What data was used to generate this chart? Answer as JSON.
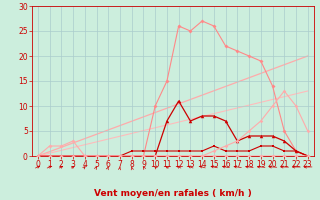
{
  "bg_color": "#cceedd",
  "grid_color": "#aacccc",
  "xlabel": "Vent moyen/en rafales ( km/h )",
  "xlim": [
    -0.5,
    23.5
  ],
  "ylim": [
    0,
    30
  ],
  "xticks": [
    0,
    1,
    2,
    3,
    4,
    5,
    6,
    7,
    8,
    9,
    10,
    11,
    12,
    13,
    14,
    15,
    16,
    17,
    18,
    19,
    20,
    21,
    22,
    23
  ],
  "yticks": [
    0,
    5,
    10,
    15,
    20,
    25,
    30
  ],
  "line_pink_big": {
    "x": [
      0,
      1,
      2,
      3,
      4,
      5,
      6,
      7,
      8,
      9,
      10,
      11,
      12,
      13,
      14,
      15,
      16,
      17,
      18,
      19,
      20,
      21,
      22,
      23
    ],
    "y": [
      0,
      0,
      0,
      0,
      0,
      0,
      0,
      0,
      0,
      0,
      10,
      15,
      26,
      25,
      27,
      26,
      22,
      21,
      20,
      19,
      14,
      5,
      1,
      0
    ],
    "color": "#ff8888",
    "lw": 0.8,
    "marker": "D",
    "ms": 2.0
  },
  "line_dark_tri": {
    "x": [
      0,
      1,
      2,
      3,
      4,
      5,
      6,
      7,
      8,
      9,
      10,
      11,
      12,
      13,
      14,
      15,
      16,
      17,
      18,
      19,
      20,
      21,
      22,
      23
    ],
    "y": [
      0,
      0,
      0,
      0,
      0,
      0,
      0,
      0,
      0,
      0,
      0,
      7,
      11,
      7,
      8,
      8,
      7,
      3,
      4,
      4,
      4,
      3,
      1,
      0
    ],
    "color": "#cc0000",
    "lw": 0.9,
    "marker": "^",
    "ms": 2.5
  },
  "line_dark_flat": {
    "x": [
      0,
      1,
      2,
      3,
      4,
      5,
      6,
      7,
      8,
      9,
      10,
      11,
      12,
      13,
      14,
      15,
      16,
      17,
      18,
      19,
      20,
      21,
      22,
      23
    ],
    "y": [
      0,
      0,
      0,
      0,
      0,
      0,
      0,
      0,
      1,
      1,
      1,
      1,
      1,
      1,
      1,
      2,
      1,
      1,
      1,
      2,
      2,
      1,
      1,
      0
    ],
    "color": "#cc0000",
    "lw": 0.8,
    "marker": "s",
    "ms": 1.8
  },
  "line_pink_early": {
    "x": [
      0,
      1,
      2,
      3,
      4,
      5,
      6,
      7,
      8,
      9,
      10,
      11,
      12,
      13,
      14,
      15,
      16,
      17,
      18,
      19,
      20,
      21,
      22,
      23
    ],
    "y": [
      0,
      2,
      2,
      3,
      0,
      0,
      0,
      0,
      0,
      0,
      0,
      0,
      0,
      0,
      0,
      0,
      0,
      0,
      0,
      0,
      0,
      0,
      0,
      0
    ],
    "color": "#ffaaaa",
    "lw": 0.8,
    "marker": "D",
    "ms": 2.0
  },
  "line_pink_late": {
    "x": [
      0,
      1,
      2,
      3,
      4,
      5,
      6,
      7,
      8,
      9,
      10,
      11,
      12,
      13,
      14,
      15,
      16,
      17,
      18,
      19,
      20,
      21,
      22,
      23
    ],
    "y": [
      0,
      0,
      0,
      0,
      0,
      0,
      0,
      0,
      0,
      0,
      0,
      0,
      0,
      0,
      0,
      1,
      2,
      3,
      5,
      7,
      10,
      13,
      10,
      5
    ],
    "color": "#ffaaaa",
    "lw": 0.8,
    "marker": "D",
    "ms": 1.8
  },
  "diag1": {
    "x": [
      0,
      23
    ],
    "y": [
      0,
      20
    ],
    "color": "#ffaaaa",
    "lw": 0.9
  },
  "diag2": {
    "x": [
      0,
      23
    ],
    "y": [
      0,
      13
    ],
    "color": "#ffbbbb",
    "lw": 0.8
  },
  "font_color": "#cc0000",
  "xlabel_fontsize": 6.5,
  "tick_fontsize": 5.5,
  "arrow_color": "#cc0000"
}
